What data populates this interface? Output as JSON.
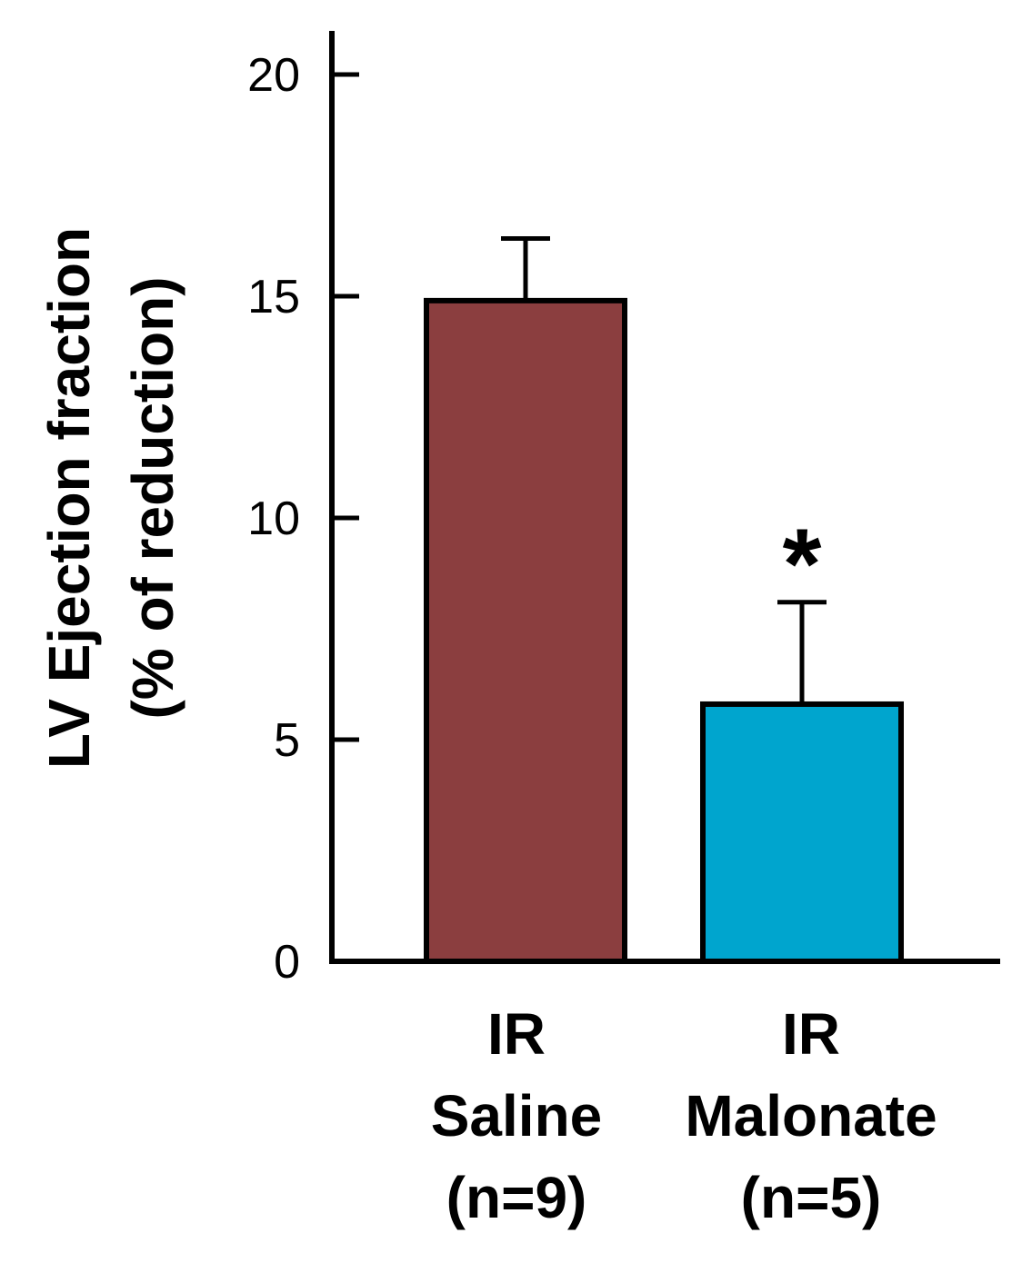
{
  "chart_data": {
    "type": "bar",
    "ylabel": [
      "LV Ejection fraction",
      "(% of reduction)"
    ],
    "ylim": [
      0,
      20
    ],
    "yticks": [
      "0",
      "5",
      "10",
      "15",
      "20"
    ],
    "categories": [
      [
        "IR",
        "Saline",
        "(n=9)"
      ],
      [
        "IR",
        "Malonate",
        "(n=5)"
      ]
    ],
    "values": [
      14.9,
      5.8
    ],
    "errors": [
      1.4,
      2.3
    ],
    "colors": [
      "#8B3E3F",
      "#00A5CE"
    ],
    "annotations": [
      "",
      "*"
    ],
    "grid": false,
    "legend": "none"
  }
}
